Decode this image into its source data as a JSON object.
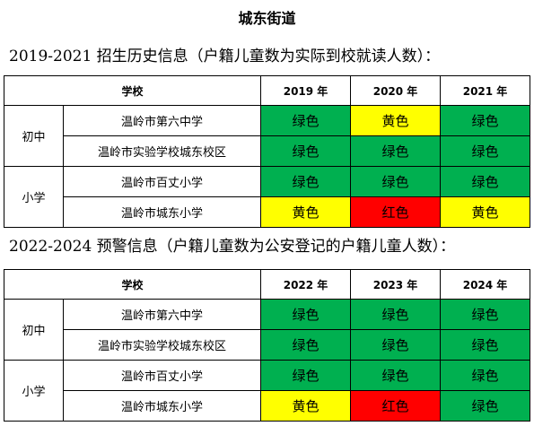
{
  "title": "城东街道",
  "colors": {
    "绿色": "#00b050",
    "黄色": "#ffff00",
    "红色": "#ff0000"
  },
  "sections": [
    {
      "heading": "2019-2021 招生历史信息（户籍儿童数为实际到校就读人数）：",
      "header_school": "学校",
      "years": [
        "2019 年",
        "2020 年",
        "2021 年"
      ],
      "groups": [
        {
          "level": "初中",
          "rows": [
            {
              "school": "温岭市第六中学",
              "statuses": [
                "绿色",
                "黄色",
                "绿色"
              ]
            },
            {
              "school": "温岭市实验学校城东校区",
              "statuses": [
                "绿色",
                "绿色",
                "绿色"
              ]
            }
          ]
        },
        {
          "level": "小学",
          "rows": [
            {
              "school": "温岭市百丈小学",
              "statuses": [
                "绿色",
                "绿色",
                "绿色"
              ]
            },
            {
              "school": "温岭市城东小学",
              "statuses": [
                "黄色",
                "红色",
                "黄色"
              ]
            }
          ]
        }
      ]
    },
    {
      "heading": "2022-2024 预警信息（户籍儿童数为公安登记的户籍儿童人数）：",
      "header_school": "学校",
      "years": [
        "2022 年",
        "2023 年",
        "2024 年"
      ],
      "groups": [
        {
          "level": "初中",
          "rows": [
            {
              "school": "温岭市第六中学",
              "statuses": [
                "绿色",
                "绿色",
                "绿色"
              ]
            },
            {
              "school": "温岭市实验学校城东校区",
              "statuses": [
                "绿色",
                "绿色",
                "绿色"
              ]
            }
          ]
        },
        {
          "level": "小学",
          "rows": [
            {
              "school": "温岭市百丈小学",
              "statuses": [
                "绿色",
                "绿色",
                "绿色"
              ]
            },
            {
              "school": "温岭市城东小学",
              "statuses": [
                "黄色",
                "红色",
                "绿色"
              ]
            }
          ]
        }
      ]
    }
  ]
}
